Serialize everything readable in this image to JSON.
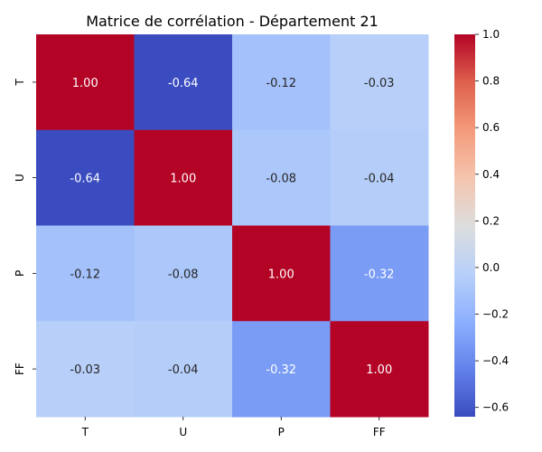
{
  "chart_data": {
    "type": "heatmap",
    "title": "Matrice de corrélation - Département 21",
    "xlabel": "",
    "ylabel": "",
    "x_categories": [
      "T",
      "U",
      "P",
      "FF"
    ],
    "y_categories": [
      "T",
      "U",
      "P",
      "FF"
    ],
    "values": [
      [
        1.0,
        -0.64,
        -0.12,
        -0.03
      ],
      [
        -0.64,
        1.0,
        -0.08,
        -0.04
      ],
      [
        -0.12,
        -0.08,
        1.0,
        -0.32
      ],
      [
        -0.03,
        -0.04,
        -0.32,
        1.0
      ]
    ],
    "value_format": "2 decimals",
    "colormap": "coolwarm",
    "vmin": -0.64,
    "vmax": 1.0,
    "colorbar": {
      "ticks": [
        -0.6,
        -0.4,
        -0.2,
        0.0,
        0.2,
        0.4,
        0.6,
        0.8,
        1.0
      ],
      "tick_labels": [
        "−0.6",
        "−0.4",
        "−0.2",
        "0.0",
        "0.2",
        "0.4",
        "0.6",
        "0.8",
        "1.0"
      ],
      "placement": "right"
    },
    "grid": false,
    "annotations": true
  }
}
